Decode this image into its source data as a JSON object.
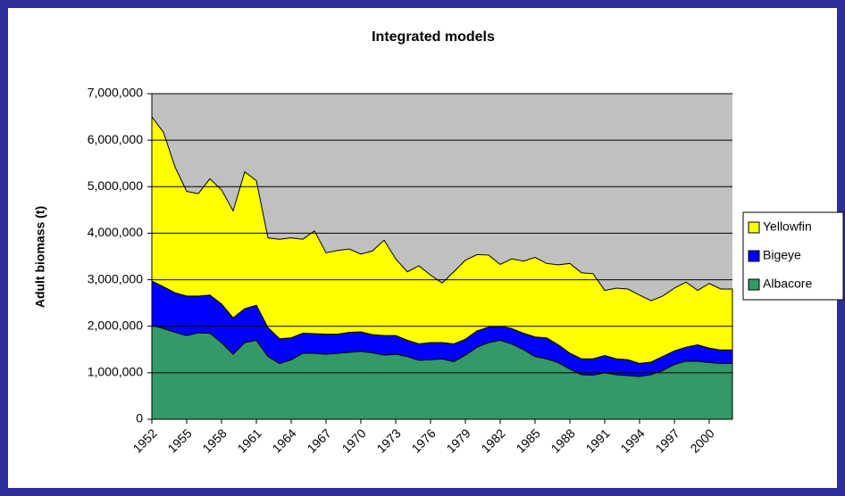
{
  "chart_data": {
    "type": "stacked-area",
    "title": "Integrated models",
    "y_label": "Adult biomass (t)",
    "categories": [
      "1952",
      null,
      null,
      "1955",
      null,
      null,
      "1958",
      null,
      null,
      "1961",
      null,
      null,
      "1964",
      null,
      null,
      "1967",
      null,
      null,
      "1970",
      null,
      null,
      "1973",
      null,
      null,
      "1976",
      null,
      null,
      "1979",
      null,
      null,
      "1982",
      null,
      null,
      "1985",
      null,
      null,
      "1988",
      null,
      null,
      "1991",
      null,
      null,
      "1994",
      null,
      null,
      "1997",
      null,
      null,
      "2000",
      null,
      null
    ],
    "series": [
      {
        "name": "Albacore",
        "color": "#339966",
        "values": [
          2020000,
          1950000,
          1870000,
          1800000,
          1860000,
          1850000,
          1650000,
          1400000,
          1650000,
          1700000,
          1350000,
          1200000,
          1280000,
          1420000,
          1420000,
          1400000,
          1420000,
          1440000,
          1460000,
          1430000,
          1380000,
          1400000,
          1350000,
          1270000,
          1280000,
          1300000,
          1240000,
          1380000,
          1550000,
          1650000,
          1700000,
          1620000,
          1500000,
          1350000,
          1300000,
          1220000,
          1080000,
          960000,
          950000,
          1000000,
          960000,
          940000,
          920000,
          960000,
          1050000,
          1180000,
          1250000,
          1250000,
          1220000,
          1200000,
          1200000
        ]
      },
      {
        "name": "Bigeye",
        "color": "#0000ff",
        "values": [
          950000,
          900000,
          850000,
          850000,
          790000,
          820000,
          830000,
          780000,
          730000,
          750000,
          620000,
          530000,
          470000,
          430000,
          420000,
          430000,
          410000,
          430000,
          420000,
          390000,
          420000,
          400000,
          350000,
          350000,
          370000,
          350000,
          380000,
          340000,
          350000,
          330000,
          300000,
          330000,
          350000,
          420000,
          450000,
          380000,
          340000,
          340000,
          350000,
          370000,
          340000,
          340000,
          280000,
          270000,
          300000,
          290000,
          300000,
          350000,
          310000,
          290000,
          290000
        ]
      },
      {
        "name": "Yellowfin",
        "color": "#ffff00",
        "values": [
          3530000,
          3320000,
          2700000,
          2250000,
          2200000,
          2500000,
          2450000,
          2300000,
          2940000,
          2680000,
          1930000,
          2140000,
          2150000,
          2020000,
          2210000,
          1750000,
          1800000,
          1790000,
          1670000,
          1800000,
          2050000,
          1650000,
          1470000,
          1680000,
          1450000,
          1280000,
          1550000,
          1700000,
          1640000,
          1550000,
          1330000,
          1500000,
          1550000,
          1710000,
          1600000,
          1720000,
          1930000,
          1850000,
          1830000,
          1400000,
          1520000,
          1520000,
          1470000,
          1320000,
          1300000,
          1350000,
          1400000,
          1170000,
          1390000,
          1310000,
          1310000
        ]
      }
    ],
    "ylim": [
      0,
      7000000
    ],
    "yticks": [
      0,
      {
        "value": 1000000,
        "label": "1,000,000"
      },
      {
        "value": 2000000,
        "label": "2,000,000"
      },
      {
        "value": 3000000,
        "label": "3,000,000"
      },
      {
        "value": 4000000,
        "label": "4,000,000"
      },
      {
        "value": 5000000,
        "label": "5,000,000"
      },
      {
        "value": 6000000,
        "label": "6,000,000"
      },
      {
        "value": 7000000,
        "label": "7,000,000"
      }
    ],
    "grid": true,
    "plot_background": "#c0c0c0",
    "legend": "right"
  }
}
